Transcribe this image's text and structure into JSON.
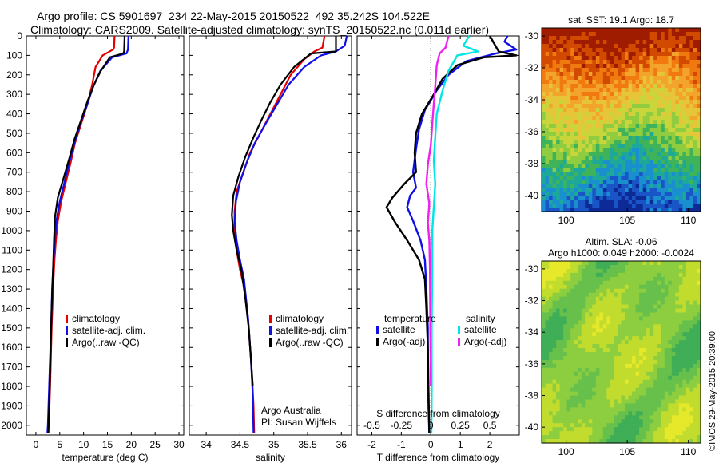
{
  "header": {
    "line1": "Argo profile: CS 5901697_234 22-May-2015 20150522_492 35.242S 104.522E",
    "line2": "Climatology: CARS2009. Satellite-adjusted climatology: synTS_20150522.nc (0.011d earlier)"
  },
  "colors": {
    "climatology": "#e60000",
    "satellite": "#1010e6",
    "argo": "#000000",
    "satellite_s": "#00e5e5",
    "argo_s": "#f020f0"
  },
  "chart_data": [
    {
      "type": "line",
      "id": "temperature",
      "xlabel": "temperature (deg C)",
      "xlim": [
        -2,
        31
      ],
      "xticks": [
        0,
        5,
        10,
        15,
        20,
        25,
        30
      ],
      "ylim": [
        2050,
        0
      ],
      "yticks": [
        0,
        100,
        200,
        300,
        400,
        500,
        600,
        700,
        800,
        900,
        1000,
        1100,
        1200,
        1300,
        1400,
        1500,
        1600,
        1700,
        1800,
        1900,
        2000
      ],
      "legend": [
        "climatology",
        "satellite-adj. clim.",
        "Argo(..raw -QC)"
      ],
      "series": [
        {
          "name": "climatology",
          "color": "climatology",
          "points": [
            [
              16.5,
              0
            ],
            [
              16.4,
              60
            ],
            [
              16.2,
              70
            ],
            [
              14,
              100
            ],
            [
              12.5,
              160
            ],
            [
              11.8,
              250
            ],
            [
              10.8,
              350
            ],
            [
              9.5,
              450
            ],
            [
              8.2,
              550
            ],
            [
              7.3,
              650
            ],
            [
              6.3,
              750
            ],
            [
              5.3,
              850
            ],
            [
              4.6,
              950
            ],
            [
              4.2,
              1050
            ],
            [
              3.9,
              1150
            ],
            [
              3.6,
              1300
            ],
            [
              3.3,
              1500
            ],
            [
              3.1,
              1700
            ],
            [
              2.9,
              1850
            ],
            [
              2.7,
              2000
            ],
            [
              2.6,
              2040
            ]
          ]
        },
        {
          "name": "satellite-adj. clim.",
          "color": "satellite",
          "points": [
            [
              19.4,
              0
            ],
            [
              19.3,
              70
            ],
            [
              19.0,
              90
            ],
            [
              16,
              110
            ],
            [
              13.5,
              180
            ],
            [
              12,
              260
            ],
            [
              10.8,
              350
            ],
            [
              9.3,
              450
            ],
            [
              8.1,
              550
            ],
            [
              7.0,
              650
            ],
            [
              6.0,
              750
            ],
            [
              5.0,
              850
            ],
            [
              4.3,
              950
            ],
            [
              4.0,
              1050
            ],
            [
              3.7,
              1150
            ],
            [
              3.4,
              1300
            ],
            [
              3.2,
              1500
            ],
            [
              2.9,
              1700
            ],
            [
              2.7,
              1850
            ],
            [
              2.5,
              2000
            ],
            [
              2.4,
              2040
            ]
          ]
        },
        {
          "name": "Argo(..raw -QC)",
          "color": "argo",
          "points": [
            [
              18.6,
              0
            ],
            [
              18.5,
              80
            ],
            [
              18.3,
              90
            ],
            [
              15.5,
              110
            ],
            [
              13.6,
              180
            ],
            [
              12.2,
              250
            ],
            [
              10.9,
              330
            ],
            [
              9.5,
              430
            ],
            [
              8.1,
              530
            ],
            [
              7.0,
              630
            ],
            [
              5.8,
              730
            ],
            [
              4.6,
              830
            ],
            [
              4.0,
              930
            ],
            [
              3.8,
              1050
            ],
            [
              3.6,
              1200
            ],
            [
              3.3,
              1400
            ],
            [
              3.1,
              1600
            ],
            [
              2.9,
              1800
            ],
            [
              2.7,
              1950
            ],
            [
              2.6,
              2040
            ]
          ]
        }
      ]
    },
    {
      "type": "line",
      "id": "salinity",
      "xlabel": "salinity",
      "xlim": [
        33.75,
        36.15
      ],
      "xticks": [
        34,
        34.5,
        35,
        35.5,
        36
      ],
      "ylim": [
        2050,
        0
      ],
      "legend": [
        "climatology",
        "satellite-adj. clim.",
        "Argo(..raw -QC)"
      ],
      "annotation": [
        "Argo Australia",
        "PI: Susan Wijffels"
      ],
      "series": [
        {
          "name": "climatology",
          "color": "climatology",
          "points": [
            [
              35.75,
              0
            ],
            [
              35.72,
              60
            ],
            [
              35.6,
              80
            ],
            [
              35.45,
              120
            ],
            [
              35.25,
              200
            ],
            [
              35.1,
              300
            ],
            [
              34.95,
              400
            ],
            [
              34.8,
              500
            ],
            [
              34.65,
              600
            ],
            [
              34.55,
              700
            ],
            [
              34.45,
              800
            ],
            [
              34.42,
              900
            ],
            [
              34.42,
              1000
            ],
            [
              34.45,
              1100
            ],
            [
              34.5,
              1200
            ],
            [
              34.57,
              1300
            ],
            [
              34.63,
              1500
            ],
            [
              34.67,
              1700
            ],
            [
              34.7,
              1900
            ],
            [
              34.71,
              2040
            ]
          ]
        },
        {
          "name": "satellite-adj. clim.",
          "color": "satellite",
          "points": [
            [
              36.08,
              0
            ],
            [
              36.05,
              50
            ],
            [
              35.92,
              80
            ],
            [
              35.7,
              100
            ],
            [
              35.45,
              160
            ],
            [
              35.22,
              250
            ],
            [
              35.05,
              350
            ],
            [
              34.88,
              450
            ],
            [
              34.72,
              550
            ],
            [
              34.6,
              650
            ],
            [
              34.5,
              750
            ],
            [
              34.44,
              850
            ],
            [
              34.42,
              950
            ],
            [
              34.45,
              1050
            ],
            [
              34.5,
              1150
            ],
            [
              34.56,
              1250
            ],
            [
              34.62,
              1450
            ],
            [
              34.66,
              1650
            ],
            [
              34.69,
              1850
            ],
            [
              34.7,
              2040
            ]
          ]
        },
        {
          "name": "Argo(..raw -QC)",
          "color": "argo",
          "points": [
            [
              35.92,
              0
            ],
            [
              35.92,
              80
            ],
            [
              35.55,
              90
            ],
            [
              35.3,
              160
            ],
            [
              35.1,
              250
            ],
            [
              34.95,
              340
            ],
            [
              34.82,
              430
            ],
            [
              34.7,
              520
            ],
            [
              34.58,
              620
            ],
            [
              34.48,
              720
            ],
            [
              34.4,
              820
            ],
            [
              34.38,
              920
            ],
            [
              34.4,
              1000
            ],
            [
              34.45,
              1100
            ],
            [
              34.52,
              1200
            ],
            [
              34.58,
              1350
            ],
            [
              34.63,
              1500
            ],
            [
              34.66,
              1650
            ],
            [
              34.69,
              1800
            ]
          ]
        }
      ]
    },
    {
      "type": "line",
      "id": "differences",
      "xlabel": "T difference from climatology",
      "xlabel2": "S difference from climatology",
      "xlim": [
        -2.5,
        3.0
      ],
      "xticks": [
        -2,
        -1,
        0,
        1,
        2
      ],
      "xticks2_labels": [
        "-0.5",
        "-0.25",
        "0",
        "0.25",
        "0.5"
      ],
      "ylim": [
        2050,
        0
      ],
      "legend_headers": [
        "temperature",
        "salinity"
      ],
      "legend": [
        "satellite",
        "Argo(-adj)",
        "satellite",
        "Argo(-adj)"
      ],
      "series": [
        {
          "name": "satellite",
          "group": "temperature",
          "color": "satellite",
          "points": [
            [
              2.6,
              0
            ],
            [
              2.5,
              30
            ],
            [
              2.9,
              70
            ],
            [
              2.2,
              90
            ],
            [
              1.2,
              130
            ],
            [
              0.6,
              200
            ],
            [
              0.2,
              280
            ],
            [
              -0.2,
              380
            ],
            [
              -0.4,
              480
            ],
            [
              -0.5,
              580
            ],
            [
              -0.6,
              700
            ],
            [
              -0.5,
              780
            ],
            [
              -0.7,
              820
            ],
            [
              -0.8,
              880
            ],
            [
              -0.6,
              950
            ],
            [
              -0.35,
              1050
            ],
            [
              -0.2,
              1150
            ],
            [
              -0.15,
              1300
            ],
            [
              -0.1,
              1500
            ],
            [
              -0.1,
              1700
            ],
            [
              -0.08,
              1900
            ],
            [
              -0.05,
              2040
            ]
          ]
        },
        {
          "name": "Argo(-adj)",
          "group": "temperature",
          "color": "argo",
          "points": [
            [
              2.0,
              0
            ],
            [
              2.3,
              80
            ],
            [
              2.9,
              100
            ],
            [
              1.8,
              110
            ],
            [
              0.9,
              150
            ],
            [
              0.4,
              220
            ],
            [
              0.1,
              300
            ],
            [
              -0.3,
              400
            ],
            [
              -0.5,
              500
            ],
            [
              -0.55,
              600
            ],
            [
              -0.5,
              700
            ],
            [
              -0.9,
              760
            ],
            [
              -1.3,
              830
            ],
            [
              -1.5,
              880
            ],
            [
              -1.2,
              960
            ],
            [
              -0.8,
              1050
            ],
            [
              -0.4,
              1150
            ],
            [
              -0.2,
              1250
            ],
            [
              -0.15,
              1400
            ],
            [
              -0.1,
              1600
            ],
            [
              -0.08,
              1800
            ],
            [
              -0.05,
              2040
            ]
          ]
        },
        {
          "name": "satellite",
          "group": "salinity",
          "color": "satellite_s",
          "points": [
            [
              1.3,
              0
            ],
            [
              1.1,
              50
            ],
            [
              1.6,
              80
            ],
            [
              0.9,
              100
            ],
            [
              0.6,
              180
            ],
            [
              0.4,
              280
            ],
            [
              0.2,
              400
            ],
            [
              0.15,
              520
            ],
            [
              0.1,
              640
            ],
            [
              0.15,
              760
            ],
            [
              0.1,
              880
            ],
            [
              0.05,
              1000
            ],
            [
              0.05,
              1200
            ],
            [
              0.03,
              1500
            ],
            [
              0.03,
              1800
            ],
            [
              0.02,
              2040
            ]
          ]
        },
        {
          "name": "Argo(-adj)",
          "group": "salinity",
          "color": "argo_s",
          "points": [
            [
              0.6,
              0
            ],
            [
              0.5,
              60
            ],
            [
              0.3,
              90
            ],
            [
              0.2,
              150
            ],
            [
              0.15,
              260
            ],
            [
              0.1,
              350
            ],
            [
              0.05,
              450
            ],
            [
              0.0,
              560
            ],
            [
              -0.1,
              660
            ],
            [
              -0.15,
              760
            ],
            [
              -0.05,
              860
            ],
            [
              -0.1,
              960
            ],
            [
              -0.05,
              1050
            ],
            [
              -0.03,
              1200
            ],
            [
              -0.02,
              1400
            ],
            [
              -0.01,
              1600
            ],
            [
              0.0,
              1800
            ]
          ]
        }
      ]
    }
  ],
  "maps": [
    {
      "id": "sst-map",
      "title": "sat. SST: 19.1  Argo: 18.7",
      "xticks": [
        100,
        105,
        110
      ],
      "yticks": [
        -30,
        -32,
        -34,
        -36,
        -38,
        -40
      ],
      "colormap": [
        "#a01c00",
        "#d24a00",
        "#f07a10",
        "#f2a52a",
        "#e6c638",
        "#c9d63b",
        "#8fcc3f",
        "#3fb35a",
        "#1ea89a",
        "#1a8fd0",
        "#1a55c8",
        "#0d2a96"
      ]
    },
    {
      "id": "sla-map",
      "title1": "Altim. SLA: -0.06",
      "title2": "Argo h1000: 0.049 h2000: -0.0024",
      "xticks": [
        100,
        105,
        110
      ],
      "yticks": [
        -30,
        -32,
        -34,
        -36,
        -38,
        -40
      ],
      "colormap": [
        "#3fae57",
        "#66c04b",
        "#8cce3f",
        "#c2dc2e",
        "#e6e82a"
      ]
    }
  ],
  "footer": {
    "credit": "©IMOS 29-May-2015 20:39:00"
  }
}
